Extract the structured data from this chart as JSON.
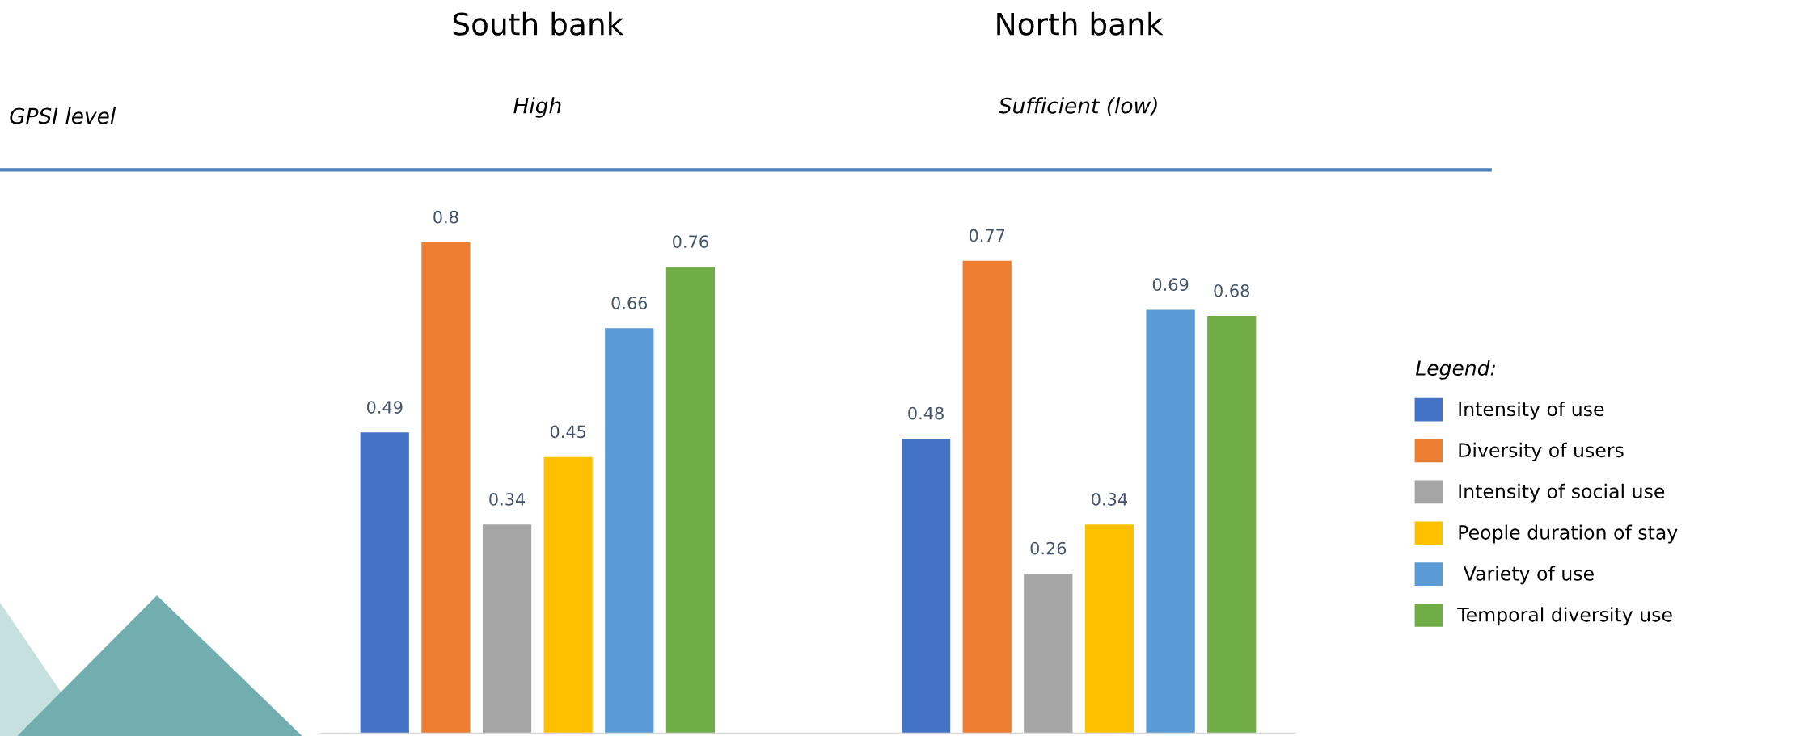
{
  "chart_data": {
    "type": "bar",
    "categories": [
      "South bank",
      "North bank"
    ],
    "series": [
      {
        "name": "Intensity of use",
        "color": "#4472c4",
        "values": [
          0.49,
          0.48
        ]
      },
      {
        "name": "Diversity of users",
        "color": "#ed7d31",
        "values": [
          0.8,
          0.77
        ]
      },
      {
        "name": "Intensity of social use",
        "color": "#a5a5a5",
        "values": [
          0.34,
          0.26
        ]
      },
      {
        "name": "People duration of stay",
        "color": "#ffc000",
        "values": [
          0.45,
          0.34
        ]
      },
      {
        "name": " Variety of use",
        "color": "#5b9bd5",
        "values": [
          0.66,
          0.69
        ]
      },
      {
        "name": "Temporal diversity use",
        "color": "#70ad47",
        "values": [
          0.76,
          0.68
        ]
      }
    ],
    "data_labels": true,
    "legend": "right",
    "legend_title": "Legend:",
    "grid": false,
    "annotations": [
      "GPSI level",
      "High",
      "Sufficient (low)"
    ]
  }
}
